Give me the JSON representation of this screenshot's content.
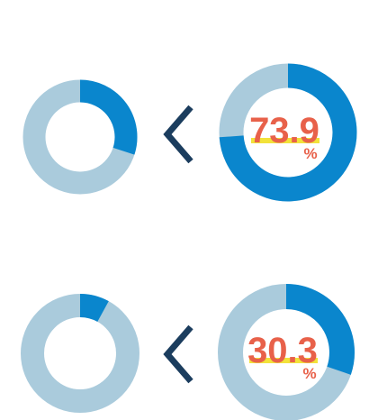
{
  "colors": {
    "filled": "#0a86cd",
    "track": "#aacbdc",
    "comparison_symbol": "#1b3d5e",
    "value_text": "#e8614a",
    "underline": "#f2e23a"
  },
  "comparison_symbol": "<",
  "chart_data": [
    {
      "type": "donut",
      "row": 1,
      "position": "left",
      "values": [
        30,
        70
      ],
      "labeled": false
    },
    {
      "type": "donut",
      "row": 1,
      "position": "right",
      "values": [
        73.9,
        26.1
      ],
      "labeled": true,
      "label": "73.9",
      "unit": "%"
    },
    {
      "type": "donut",
      "row": 2,
      "position": "left",
      "values": [
        8,
        92
      ],
      "labeled": false
    },
    {
      "type": "donut",
      "row": 2,
      "position": "right",
      "values": [
        30.3,
        69.7
      ],
      "labeled": true,
      "label": "30.3",
      "unit": "%"
    }
  ]
}
